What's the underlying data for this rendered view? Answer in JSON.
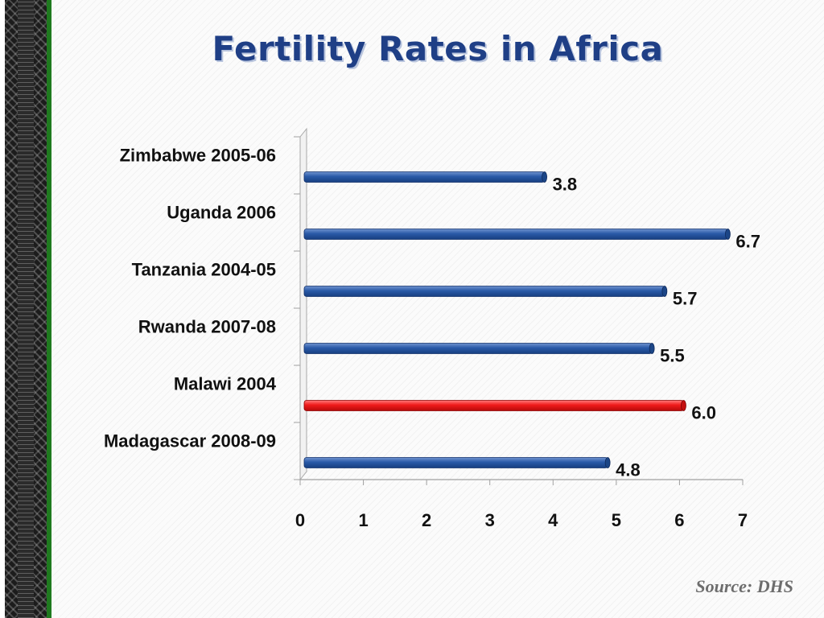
{
  "title": "Fertility Rates in Africa",
  "source": "Source: DHS",
  "colors": {
    "bar": "#1f4e97",
    "highlight": "#e8141a",
    "title": "#1f3f86"
  },
  "chart_data": {
    "type": "bar",
    "orientation": "horizontal",
    "categories": [
      "Zimbabwe 2005-06",
      "Uganda 2006",
      "Tanzania 2004-05",
      "Rwanda 2007-08",
      "Malawi 2004",
      "Madagascar 2008-09"
    ],
    "values": [
      3.8,
      6.7,
      5.7,
      5.5,
      6.0,
      4.8
    ],
    "value_labels": [
      "3.8",
      "6.7",
      "5.7",
      "5.5",
      "6.0",
      "4.8"
    ],
    "highlight": "Malawi 2004",
    "xlim": [
      0,
      7
    ],
    "xticks": [
      0,
      1,
      2,
      3,
      4,
      5,
      6,
      7
    ],
    "title": "Fertility Rates in Africa",
    "xlabel": "",
    "ylabel": "",
    "grid": false,
    "legend": "none"
  }
}
